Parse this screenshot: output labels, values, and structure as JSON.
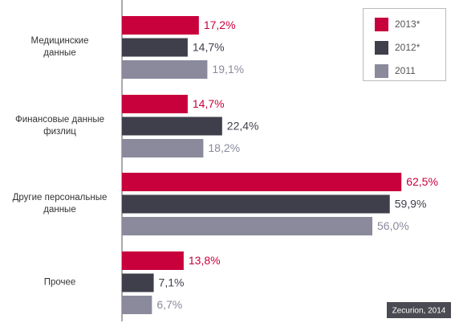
{
  "chart_data": {
    "type": "bar",
    "orientation": "horizontal",
    "categories": [
      "Медицинские\nданные",
      "Финансовые данные\nфизлиц",
      "Другие персональные\nданные",
      "Прочее"
    ],
    "series": [
      {
        "name": "2013*",
        "color": "#c8003c",
        "values": [
          17.2,
          14.7,
          62.5,
          13.8
        ],
        "value_labels": [
          "17,2%",
          "14,7%",
          "62,5%",
          "13,8%"
        ]
      },
      {
        "name": "2012*",
        "color": "#3f3f4b",
        "values": [
          14.7,
          22.4,
          59.9,
          7.1
        ],
        "value_labels": [
          "14,7%",
          "22,4%",
          "59,9%",
          "7,1%"
        ]
      },
      {
        "name": "2011",
        "color": "#8a8a9c",
        "values": [
          19.1,
          18.2,
          56.0,
          6.7
        ],
        "value_labels": [
          "19,1%",
          "18,2%",
          "56,0%",
          "6,7%"
        ]
      }
    ],
    "xlim": [
      0,
      70
    ],
    "legend": "top-right",
    "source": "Zecurion, 2014"
  }
}
